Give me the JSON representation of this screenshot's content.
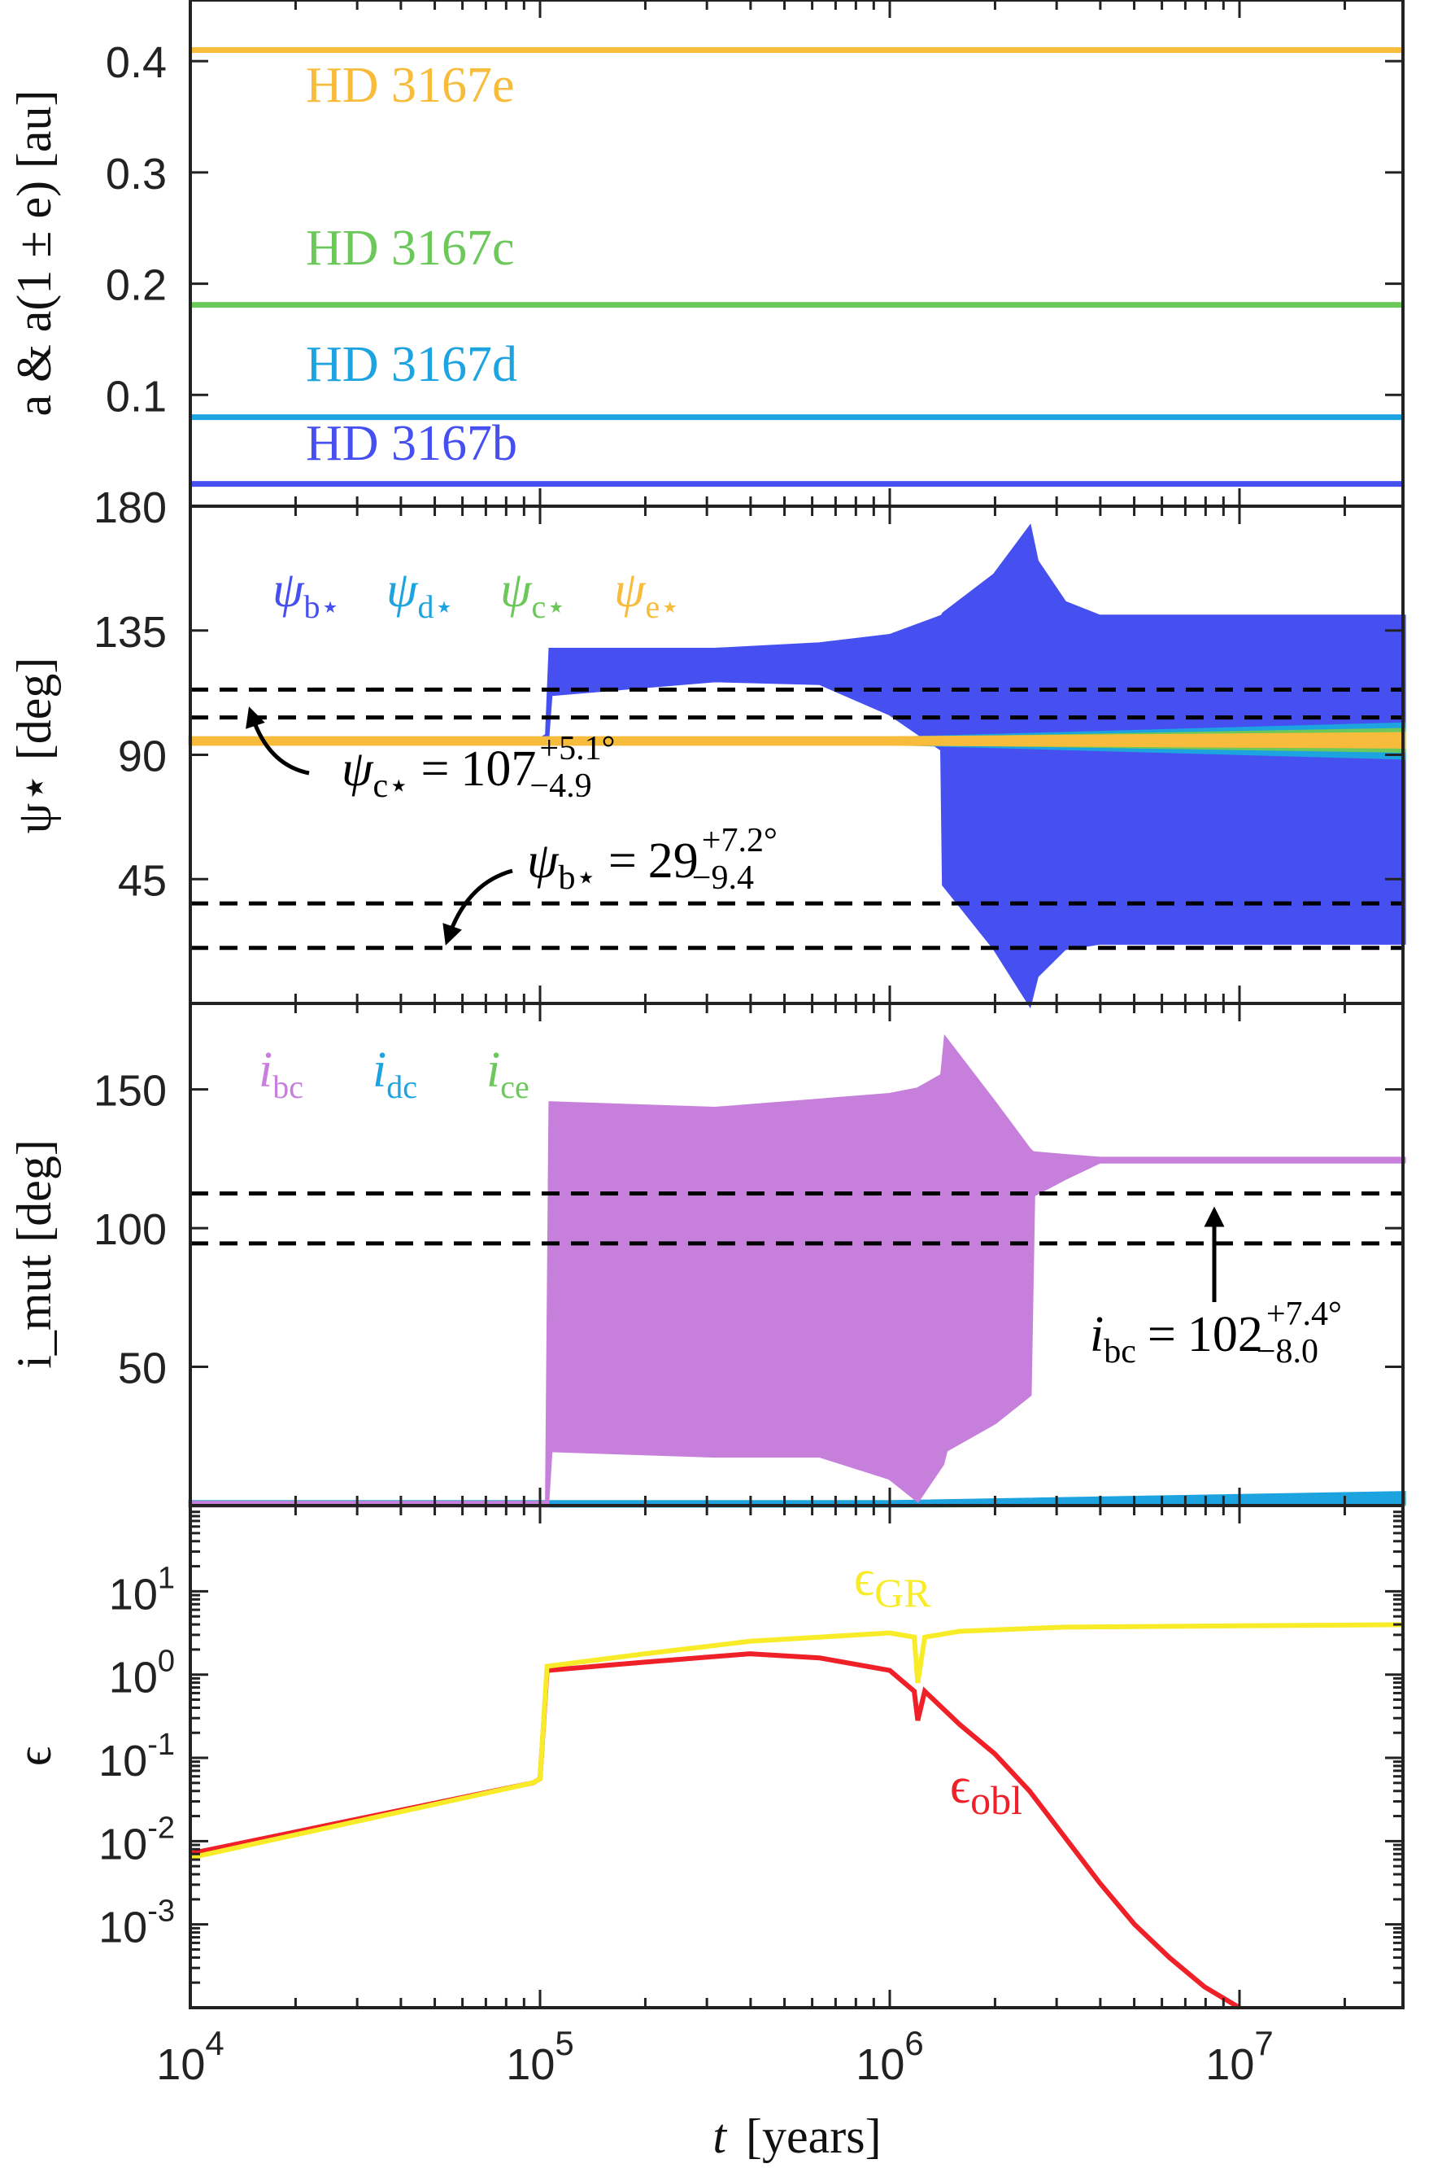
{
  "colors": {
    "b": "#4650f0",
    "d": "#1ca3e0",
    "c": "#6cc85a",
    "e": "#f8bc3c",
    "ibc": "#c680dc",
    "gr": "#f8ec28",
    "obl": "#f02028"
  },
  "shared_x": {
    "label_var": "t",
    "label_unit": "[years]",
    "scale": "log",
    "range_log10": [
      4,
      7.47
    ],
    "tick_labels": [
      {
        "base": "10",
        "exp": "4",
        "log": 4
      },
      {
        "base": "10",
        "exp": "5",
        "log": 5
      },
      {
        "base": "10",
        "exp": "6",
        "log": 6
      },
      {
        "base": "10",
        "exp": "7",
        "log": 7
      }
    ]
  },
  "chart_data": [
    {
      "type": "line",
      "panel": "semi-major axes",
      "ylabel": "a & a(1 ± e)  [au]",
      "ylim": [
        0,
        0.455
      ],
      "yticks": [
        "0.1",
        "0.2",
        "0.3",
        "0.4"
      ],
      "ytick_values": [
        0.1,
        0.2,
        0.3,
        0.4
      ],
      "series": [
        {
          "name": "HD 3167e",
          "color": "e",
          "value": 0.41
        },
        {
          "name": "HD 3167c",
          "color": "c",
          "value": 0.181
        },
        {
          "name": "HD 3167d",
          "color": "d",
          "value": 0.08
        },
        {
          "name": "HD 3167b",
          "color": "b",
          "value": 0.02
        }
      ]
    },
    {
      "type": "area",
      "panel": "stellar obliquity",
      "ylabel": "ψ⋆ [deg]",
      "ylim": [
        0,
        180
      ],
      "yticks": [
        "45",
        "90",
        "135",
        "180"
      ],
      "ytick_values": [
        45,
        90,
        135,
        180
      ],
      "legend": [
        {
          "sym": "ψ",
          "sub": "b⋆",
          "color": "b"
        },
        {
          "sym": "ψ",
          "sub": "d⋆",
          "color": "d"
        },
        {
          "sym": "ψ",
          "sub": "c⋆",
          "color": "c"
        },
        {
          "sym": "ψ",
          "sub": "e⋆",
          "color": "e"
        }
      ],
      "dashed": [
        113.6,
        103.5,
        36.2,
        20.1
      ],
      "annotations": [
        {
          "lhs": "ψ",
          "sub": "c⋆",
          "eq": "=",
          "val": "107",
          "up": "+5.1°",
          "down": "−4.9"
        },
        {
          "lhs": "ψ",
          "sub": "b⋆",
          "eq": "=",
          "val": "29",
          "up": "+7.2°",
          "down": "−9.4"
        }
      ],
      "bands": [
        {
          "name": "psi_b",
          "color": "b",
          "log_t": [
            4,
            5.0,
            5.02,
            5.03,
            5.5,
            5.8,
            6.0,
            6.15,
            6.155,
            6.3,
            6.4,
            6.42,
            6.5,
            6.6,
            7.47
          ],
          "upper": [
            95.5,
            95.5,
            97,
            128,
            128,
            130,
            133,
            140,
            141,
            155,
            172,
            160,
            145,
            140,
            140
          ],
          "lower": [
            94.5,
            94.5,
            95,
            112,
            117,
            116,
            105,
            92,
            43,
            20,
            0,
            10,
            20,
            22,
            22
          ]
        },
        {
          "name": "psi_d",
          "color": "d",
          "log_t": [
            4,
            6.0,
            7.47
          ],
          "upper": [
            95.8,
            95.8,
            101
          ],
          "lower": [
            94.2,
            94.2,
            89
          ]
        },
        {
          "name": "psi_c",
          "color": "c",
          "log_t": [
            4,
            6.0,
            7.47
          ],
          "upper": [
            95.6,
            95.6,
            99
          ],
          "lower": [
            94.4,
            94.4,
            91.5
          ]
        },
        {
          "name": "psi_e",
          "color": "e",
          "log_t": [
            4,
            6.0,
            7.47
          ],
          "upper": [
            96,
            96,
            97.5
          ],
          "lower": [
            94,
            94,
            93
          ]
        }
      ]
    },
    {
      "type": "area",
      "panel": "mutual inclination",
      "ylabel": "i_mut [deg]",
      "ylim": [
        0,
        181
      ],
      "yticks": [
        "50",
        "100",
        "150"
      ],
      "ytick_values": [
        50,
        100,
        150
      ],
      "legend": [
        {
          "sym": "i",
          "sub": "bc",
          "color": "ibc"
        },
        {
          "sym": "i",
          "sub": "dc",
          "color": "d"
        },
        {
          "sym": "i",
          "sub": "ce",
          "color": "c"
        }
      ],
      "dashed": [
        112.5,
        94.5
      ],
      "annotations": [
        {
          "lhs": "i",
          "sub": "bc",
          "eq": "=",
          "val": "102",
          "up": "+7.4°",
          "down": "−8.0"
        }
      ],
      "bands": [
        {
          "name": "i_bc",
          "color": "ibc",
          "log_t": [
            4,
            5.02,
            5.03,
            5.5,
            5.8,
            6.0,
            6.08,
            6.15,
            6.16,
            6.3,
            6.4,
            6.41,
            6.5,
            6.6,
            7.47
          ],
          "upper": [
            1,
            1,
            145,
            143,
            146,
            148,
            150,
            155,
            168,
            145,
            128,
            127,
            126,
            125,
            125
          ],
          "lower": [
            0,
            0,
            20,
            18,
            18,
            10,
            2,
            15,
            20,
            30,
            40,
            112,
            118,
            124,
            124
          ]
        },
        {
          "name": "i_dc",
          "color": "d",
          "log_t": [
            4,
            6.0,
            7.47
          ],
          "upper": [
            1.2,
            1.2,
            4.5
          ],
          "lower": [
            0,
            0,
            1
          ]
        },
        {
          "name": "i_ce",
          "color": "c",
          "log_t": [
            4,
            6.0,
            7.47
          ],
          "upper": [
            1.2,
            1.2,
            2.5
          ],
          "lower": [
            0,
            0,
            0.5
          ]
        }
      ]
    },
    {
      "type": "line",
      "panel": "epsilon",
      "ylabel": "ϵ",
      "yscale": "log",
      "ylim_log10": [
        -4,
        2.03
      ],
      "yticks": [
        {
          "base": "10",
          "exp": "-3",
          "log": -3
        },
        {
          "base": "10",
          "exp": "-2",
          "log": -2
        },
        {
          "base": "10",
          "exp": "-1",
          "log": -1
        },
        {
          "base": "10",
          "exp": "0",
          "log": 0
        },
        {
          "base": "10",
          "exp": "1",
          "log": 1
        }
      ],
      "legend": [
        {
          "sym": "ϵ",
          "sub": "GR",
          "color": "gr"
        },
        {
          "sym": "ϵ",
          "sub": "obl",
          "color": "obl"
        }
      ],
      "series": [
        {
          "name": "epsilon_obl",
          "color": "obl",
          "log_t": [
            4,
            4.98,
            5.0,
            5.02,
            5.3,
            5.6,
            5.8,
            6.0,
            6.07,
            6.08,
            6.1,
            6.2,
            6.3,
            6.4,
            6.5,
            6.6,
            6.7,
            6.8,
            6.9,
            7.0
          ],
          "log_eps": [
            -2.15,
            -1.3,
            -1.25,
            0.05,
            0.15,
            0.25,
            0.2,
            0.05,
            -0.2,
            -0.55,
            -0.2,
            -0.6,
            -0.95,
            -1.4,
            -1.95,
            -2.5,
            -3.0,
            -3.4,
            -3.75,
            -4.0
          ]
        },
        {
          "name": "epsilon_GR",
          "color": "gr",
          "log_t": [
            4,
            4.98,
            5.0,
            5.02,
            5.3,
            5.6,
            6.0,
            6.07,
            6.08,
            6.1,
            6.2,
            6.5,
            7.47
          ],
          "log_eps": [
            -2.2,
            -1.3,
            -1.25,
            0.1,
            0.25,
            0.4,
            0.5,
            0.45,
            -0.1,
            0.45,
            0.52,
            0.57,
            0.6
          ]
        }
      ]
    }
  ]
}
